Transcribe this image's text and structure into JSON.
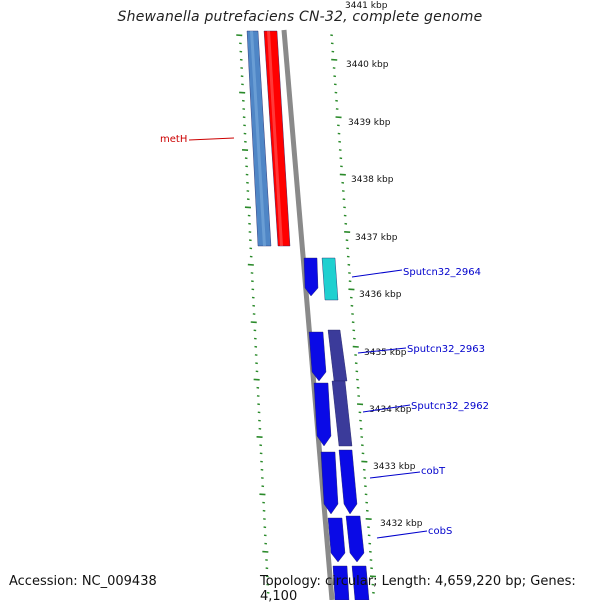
{
  "title": "Shewanella putrefaciens CN-32, complete genome",
  "accession_text": "Accession: NC_009438",
  "topology_text": "Topology: circular; Length: 4,659,220 bp; Genes: 4,100",
  "colors": {
    "backbone": "#8a8a8a",
    "tick_green": "#2a8a2a",
    "label_red": "#cc0000",
    "label_blue": "#0000cc",
    "gene_blue": "#0a0ae6",
    "gene_steel": "#4f86c6",
    "gene_red": "#ff0000",
    "gene_cyan": "#1fd0d0",
    "gene_purple": "#3b3b9a"
  },
  "scale_labels": [
    {
      "kbp": 3441,
      "text": "3441 kbp"
    },
    {
      "kbp": 3440,
      "text": "3440 kbp"
    },
    {
      "kbp": 3439,
      "text": "3439 kbp"
    },
    {
      "kbp": 3438,
      "text": "3438 kbp"
    },
    {
      "kbp": 3437,
      "text": "3437 kbp"
    },
    {
      "kbp": 3436,
      "text": "3436 kbp"
    },
    {
      "kbp": 3435,
      "text": "3435 kbp"
    },
    {
      "kbp": 3434,
      "text": "3434 kbp"
    },
    {
      "kbp": 3433,
      "text": "3433 kbp"
    },
    {
      "kbp": 3432,
      "text": "3432 kbp"
    }
  ],
  "gene_labels": [
    {
      "text": "metH",
      "color": "red"
    },
    {
      "text": "Sputcn32_2964",
      "color": "blue"
    },
    {
      "text": "Sputcn32_2963",
      "color": "blue"
    },
    {
      "text": "Sputcn32_2962",
      "color": "blue"
    },
    {
      "text": "cobT",
      "color": "blue"
    },
    {
      "text": "cobS",
      "color": "blue"
    }
  ]
}
